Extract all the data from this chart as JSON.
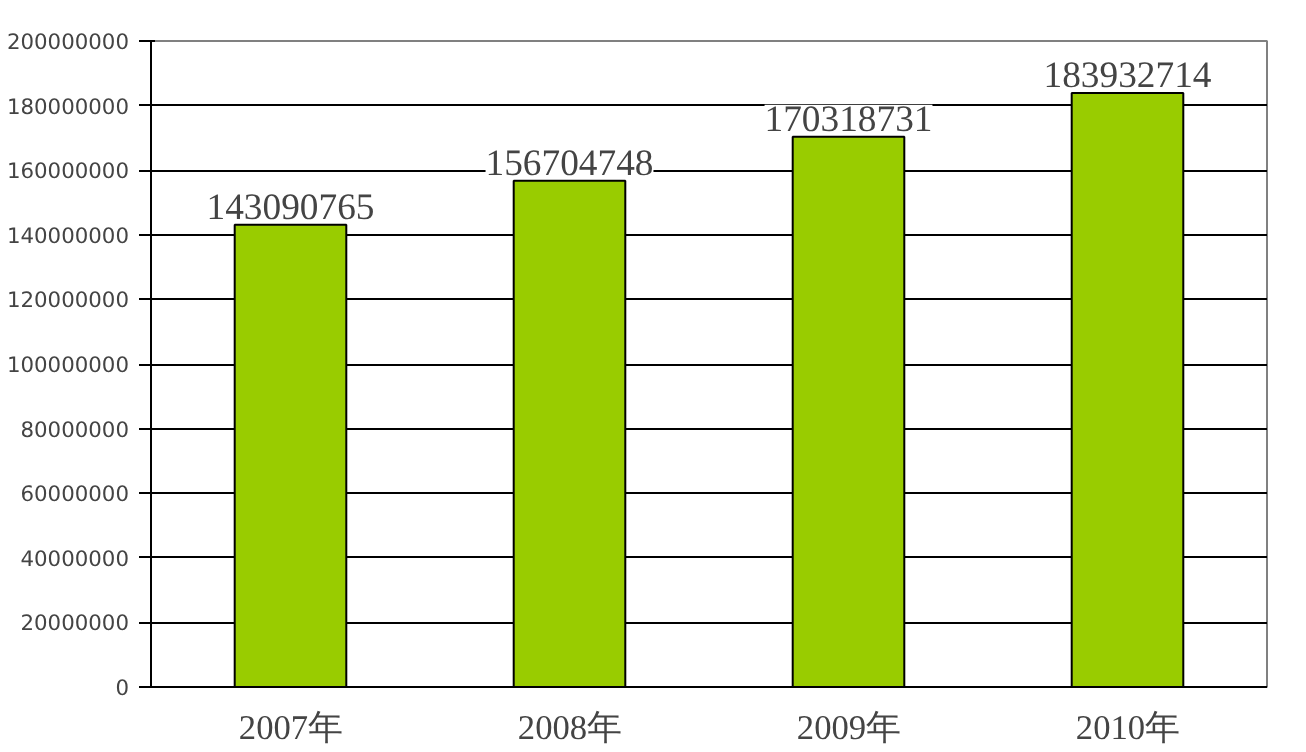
{
  "chart_data": {
    "type": "bar",
    "categories": [
      "2007年",
      "2008年",
      "2009年",
      "2010年"
    ],
    "values": [
      143090765,
      156704748,
      170318731,
      183932714
    ],
    "color": "#99cc00",
    "ylim": [
      0,
      200000000
    ],
    "yticks": [
      0,
      20000000,
      40000000,
      60000000,
      80000000,
      100000000,
      120000000,
      140000000,
      160000000,
      180000000,
      200000000
    ],
    "grid": "y",
    "data_labels": true
  }
}
